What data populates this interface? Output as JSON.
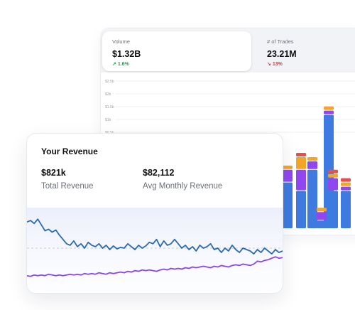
{
  "trades_panel": {
    "stats": [
      {
        "label": "Volume",
        "value": "$1.32B",
        "change": "1.6%",
        "direction": "up"
      },
      {
        "label": "# of Trades",
        "value": "23.21M",
        "change": "13%",
        "direction": "down"
      }
    ],
    "y_ticks": [
      "$2.5b",
      "$2b",
      "$1.5b",
      "$1b",
      "$0.5b"
    ],
    "bar_colors": {
      "primary": "#3f7ae0",
      "secondary": "#9147f0",
      "tertiary": "#f3a527",
      "quaternary": "#e4504a"
    }
  },
  "revenue_card": {
    "title": "Your Revenue",
    "metrics": [
      {
        "value": "$821k",
        "label": "Total Revenue"
      },
      {
        "value": "$82,112",
        "label": "Avg Monthly Revenue"
      }
    ],
    "line_colors": {
      "revenue": "#2a6ab0",
      "average": "#8a45ee"
    }
  },
  "chart_data": [
    {
      "type": "bar",
      "stacked": true,
      "categories": [
        "",
        "",
        "",
        "",
        "",
        "",
        ""
      ],
      "series": [
        {
          "color": "#3f7ae0",
          "values": [
            1.1,
            0.9,
            1.4,
            2.7,
            0.2,
            0.9,
            0.9
          ]
        },
        {
          "color": "#9147f0",
          "values": [
            0.3,
            0.5,
            0.2,
            0.1,
            0.2,
            0.3,
            0.1
          ]
        },
        {
          "color": "#f3a527",
          "values": [
            0.1,
            0.3,
            0.1,
            0.1,
            0.1,
            0.1,
            0.1
          ]
        },
        {
          "color": "#e4504a",
          "values": [
            0.0,
            0.1,
            0.0,
            0.0,
            0.0,
            0.1,
            0.1
          ]
        }
      ],
      "ylim": [
        0,
        3.5
      ],
      "grid": true
    },
    {
      "type": "line",
      "series": [
        {
          "color": "#2a6ab0",
          "values": [
            88,
            90,
            86,
            92,
            84,
            76,
            78,
            74,
            77,
            70,
            64,
            58,
            56,
            62,
            54,
            58,
            52,
            60,
            56,
            54,
            58,
            52,
            56,
            50,
            55,
            51,
            53,
            52,
            58,
            54,
            50,
            56,
            52,
            55,
            60,
            58,
            64,
            54,
            62,
            56,
            58,
            64,
            58,
            52,
            56,
            50,
            54,
            48,
            56,
            52,
            54,
            58,
            50,
            52,
            46,
            52,
            48,
            56,
            50,
            46,
            52,
            50,
            48,
            44,
            50,
            46,
            52,
            48,
            44,
            50,
            46,
            48
          ]
        },
        {
          "color": "#8a45ee",
          "values": [
            14,
            13,
            15,
            14,
            15,
            14,
            16,
            15,
            14,
            15,
            14,
            15,
            16,
            15,
            16,
            15,
            17,
            16,
            17,
            16,
            18,
            17,
            16,
            18,
            17,
            18,
            19,
            18,
            20,
            19,
            21,
            20,
            22,
            21,
            22,
            21,
            20,
            22,
            23,
            22,
            24,
            23,
            24,
            23,
            25,
            24,
            26,
            25,
            26,
            27,
            26,
            25,
            27,
            26,
            28,
            27,
            26,
            28,
            29,
            28,
            30,
            29,
            28,
            30,
            34,
            33,
            35,
            36,
            38,
            40,
            38,
            39
          ]
        }
      ]
    }
  ]
}
